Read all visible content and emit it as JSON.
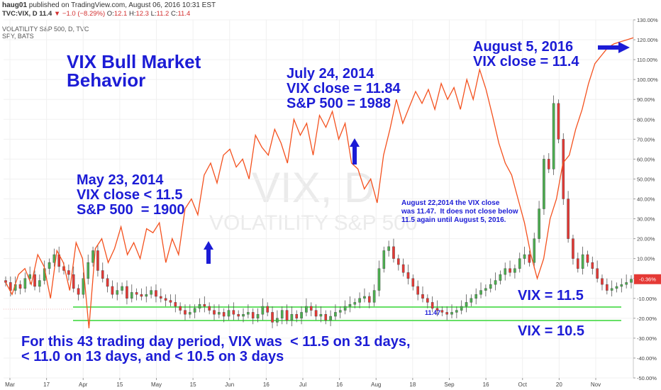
{
  "header": {
    "author": "haug01",
    "published_text": "published on TradingView.com, August 06, 2016 10:31 EST",
    "symbol": "TVC:VIX, D",
    "last": "11.4",
    "change": "−1.0 (−8.29%)",
    "open_label": "O:",
    "open": "12.1",
    "high_label": "H:",
    "high": "12.3",
    "low_label": "L:",
    "low": "11.2",
    "close_label": "C:",
    "close": "11.4",
    "series1_label": "VOLATILITY S&P 500, D, TVC",
    "series2_label": "SPY, BATS"
  },
  "watermark": {
    "line1": "VIX, D",
    "line2": "VOLATILITY S&P 500"
  },
  "annotations": {
    "title": "VIX Bull Market\nBehavior",
    "may": "May 23, 2014\nVIX close < 11.5\nS&P 500  = 1900",
    "july": "July 24, 2014\nVIX close = 11.84\nS&P 500 = 1988",
    "aug2016": "August 5, 2016\nVIX close = 11.4",
    "aug2014": "August 22,2014 the VIX close\nwas 11.47.  It does not close below\n11.5 again until August 5, 2016.",
    "vix115": "VIX = 11.5",
    "vix105": "VIX = 10.5",
    "bottom": "For this 43 trading day period, VIX was  < 11.5 on 31 days,\n< 11.0 on 13 days, and < 10.5 on 3 days",
    "low_label": "11.47"
  },
  "colors": {
    "annotation": "#1c1cd6",
    "candle_up": "#4caf50",
    "candle_down": "#e53935",
    "spy_line": "#f4511e",
    "threshold_line": "#66e066",
    "price_badge": "#e53935"
  },
  "chart_data": {
    "type": "line",
    "title": "",
    "xlabel": "",
    "ylabel": "",
    "x_tick_labels": [
      "Mar",
      "17",
      "Apr",
      "15",
      "May",
      "15",
      "Jun",
      "16",
      "Jul",
      "16",
      "Aug",
      "18",
      "Sep",
      "16",
      "Oct",
      "20",
      "Nov"
    ],
    "y_tick_labels": [
      "130.00%",
      "120.00%",
      "110.00%",
      "100.00%",
      "90.00%",
      "80.00%",
      "70.00%",
      "60.00%",
      "50.00%",
      "40.00%",
      "30.00%",
      "20.00%",
      "10.00%",
      "0.00%",
      "-10.00%",
      "-20.00%",
      "-30.00%",
      "-40.00%",
      "-50.00%"
    ],
    "ylim": [
      -50,
      130
    ],
    "y_unit": "%",
    "current_value_label": "-0.36%",
    "grid": true,
    "series": [
      {
        "name": "SPY, BATS",
        "values": [
          -2,
          -8,
          2,
          5,
          -3,
          12,
          6,
          -10,
          14,
          8,
          -6,
          18,
          10,
          -25,
          15,
          20,
          8,
          15,
          26,
          12,
          18,
          10,
          25,
          23,
          28,
          8,
          20,
          12,
          35,
          40,
          32,
          52,
          58,
          48,
          62,
          65,
          56,
          60,
          50,
          72,
          66,
          62,
          75,
          68,
          58,
          80,
          72,
          78,
          62,
          82,
          76,
          84,
          70,
          78,
          58,
          55,
          45,
          50,
          38,
          62,
          75,
          90,
          78,
          86,
          94,
          88,
          95,
          85,
          98,
          90,
          96,
          85,
          100,
          90,
          105,
          95,
          82,
          68,
          58,
          52,
          40,
          28,
          12,
          0,
          10,
          30,
          40,
          58,
          62,
          75,
          85,
          98,
          108,
          112,
          116,
          118,
          119,
          120,
          121
        ]
      },
      {
        "name": "VIX, D",
        "type": "candlestick",
        "values": [
          -2,
          -6,
          -3,
          -5,
          0,
          2,
          -4,
          -1,
          5,
          8,
          12,
          6,
          4,
          2,
          -5,
          -8,
          0,
          8,
          14,
          4,
          0,
          -4,
          -8,
          -6,
          -4,
          -10,
          -7,
          -8,
          -9,
          -8,
          -6,
          -9,
          -10,
          -11,
          -12,
          -14,
          -16,
          -18,
          -17,
          -15,
          -13,
          -14,
          -16,
          -18,
          -17,
          -19,
          -16,
          -18,
          -19,
          -18,
          -17,
          -20,
          -18,
          -14,
          -17,
          -22,
          -20,
          -16,
          -21,
          -18,
          -20,
          -17,
          -14,
          -16,
          -19,
          -18,
          -21,
          -19,
          -17,
          -16,
          -14,
          -13,
          -12,
          -10,
          -9,
          -12,
          -6,
          5,
          14,
          16,
          10,
          7,
          3,
          0,
          -4,
          -8,
          -10,
          -12,
          -15,
          -16,
          -17,
          -18,
          -17,
          -16,
          -14,
          -12,
          -10,
          -8,
          -6,
          -5,
          -3,
          -1,
          2,
          5,
          3,
          5,
          10,
          12,
          8,
          20,
          35,
          60,
          55,
          88,
          70,
          40,
          20,
          10,
          5,
          12,
          8,
          5,
          0,
          -3,
          -6,
          -5,
          -4,
          -3,
          -2,
          -0.36
        ],
        "lows": {
          "2014-05-23": "< 11.5",
          "2014-08-22": 11.47
        }
      }
    ],
    "threshold_lines": [
      {
        "name": "VIX = 11.5"
      },
      {
        "name": "VIX = 10.5"
      }
    ]
  }
}
